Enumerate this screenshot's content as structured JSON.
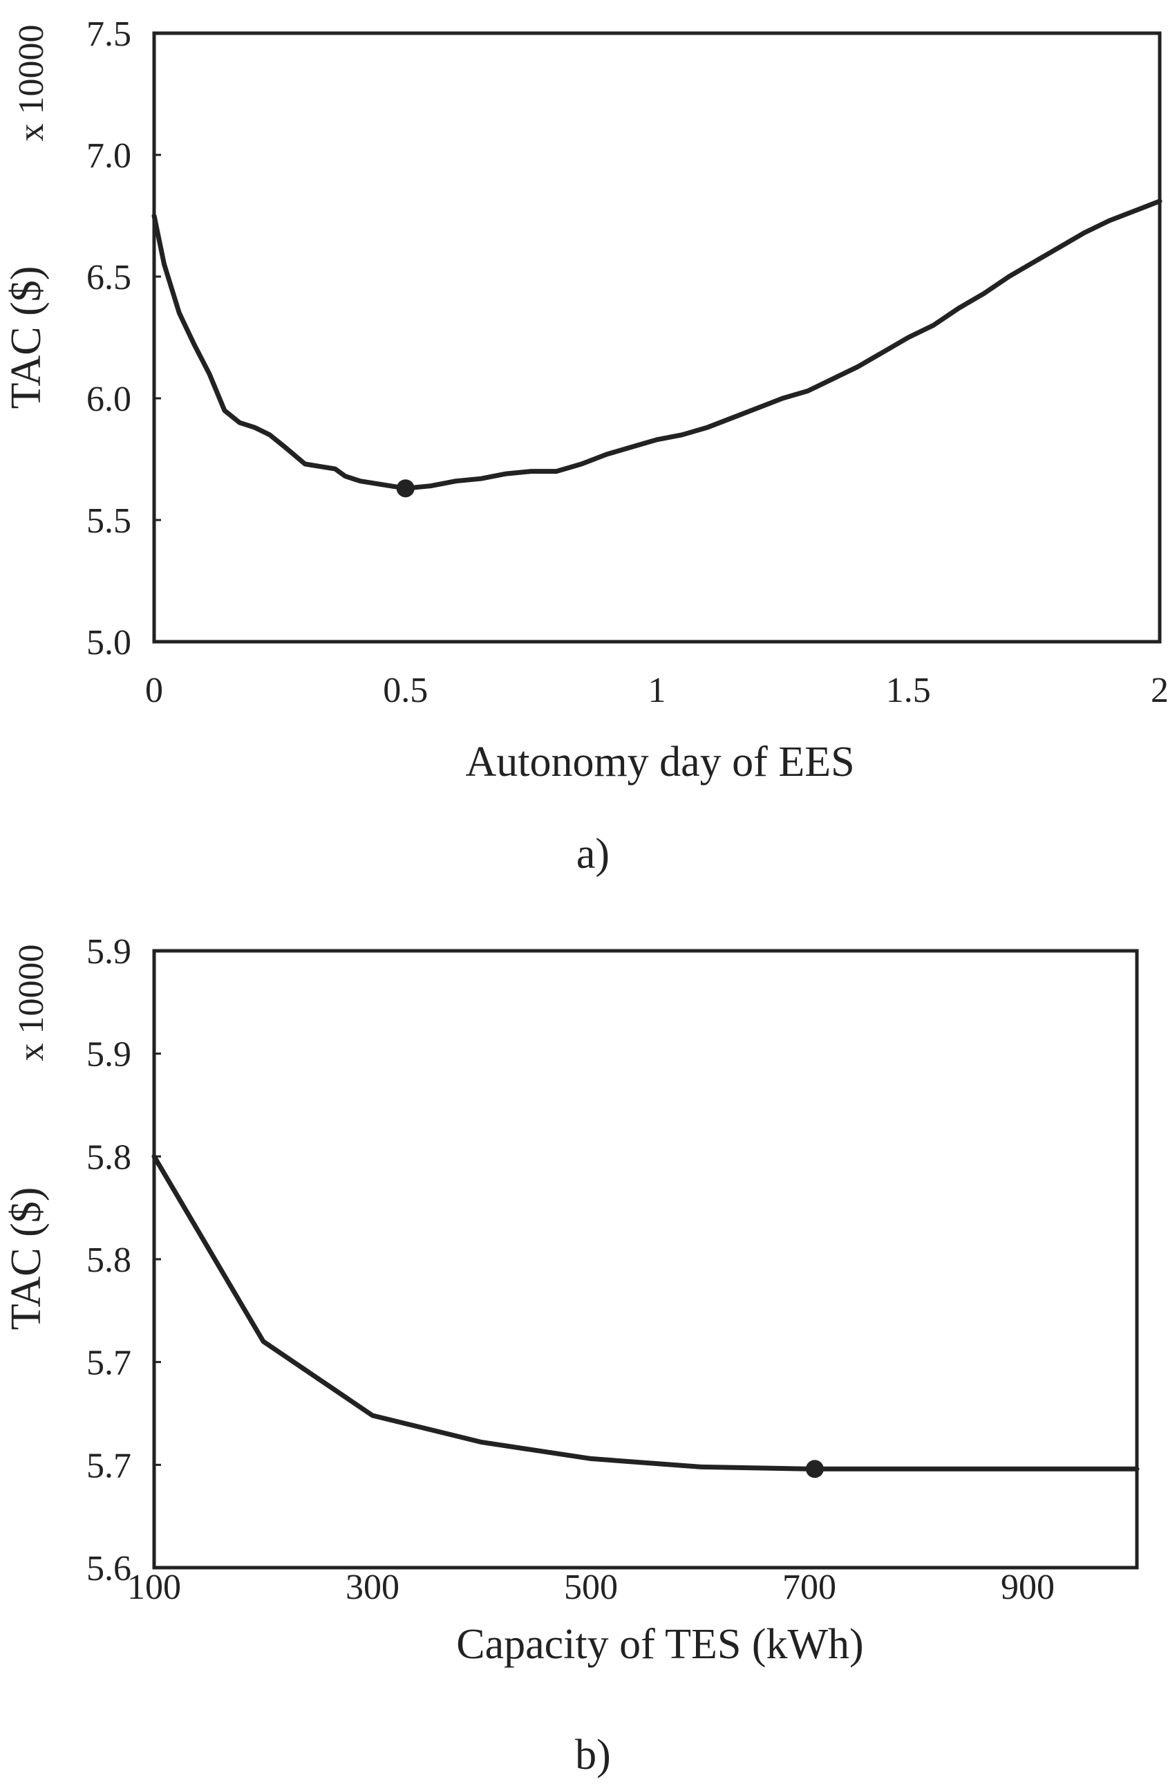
{
  "chart_data": [
    {
      "type": "line",
      "title": "",
      "caption": "a)",
      "xlabel": "Autonomy day of EES",
      "ylabel": "TAC ($)",
      "yscale_label": "x 10000",
      "xlim": [
        0,
        2
      ],
      "ylim": [
        5.0,
        7.5
      ],
      "xticks": [
        0,
        0.5,
        1,
        1.5,
        2
      ],
      "xtick_labels": [
        "0",
        "0.5",
        "1",
        "1.5",
        "2"
      ],
      "yticks": [
        5.0,
        5.5,
        6.0,
        6.5,
        7.0,
        7.5
      ],
      "ytick_labels": [
        "5.0",
        "5.5",
        "6.0",
        "6.5",
        "7.0",
        "7.5"
      ],
      "grid": false,
      "series": [
        {
          "x": [
            0,
            0.02,
            0.05,
            0.08,
            0.11,
            0.14,
            0.17,
            0.2,
            0.23,
            0.26,
            0.3,
            0.33,
            0.36,
            0.38,
            0.41,
            0.44,
            0.47,
            0.5,
            0.55,
            0.6,
            0.65,
            0.7,
            0.75,
            0.8,
            0.85,
            0.9,
            0.95,
            1.0,
            1.05,
            1.1,
            1.15,
            1.2,
            1.25,
            1.3,
            1.35,
            1.4,
            1.45,
            1.5,
            1.55,
            1.6,
            1.65,
            1.7,
            1.75,
            1.8,
            1.85,
            1.9,
            1.95,
            2.0
          ],
          "y": [
            6.75,
            6.55,
            6.35,
            6.22,
            6.1,
            5.95,
            5.9,
            5.88,
            5.85,
            5.8,
            5.73,
            5.72,
            5.71,
            5.68,
            5.66,
            5.65,
            5.64,
            5.63,
            5.64,
            5.66,
            5.67,
            5.69,
            5.7,
            5.7,
            5.73,
            5.77,
            5.8,
            5.83,
            5.85,
            5.88,
            5.92,
            5.96,
            6.0,
            6.03,
            6.08,
            6.13,
            6.19,
            6.25,
            6.3,
            6.37,
            6.43,
            6.5,
            6.56,
            6.62,
            6.68,
            6.73,
            6.77,
            6.81
          ]
        }
      ],
      "highlight": {
        "x": 0.5,
        "y": 5.63
      }
    },
    {
      "type": "line",
      "title": "",
      "caption": "b)",
      "xlabel": "Capacity of TES (kWh)",
      "ylabel": "TAC ($)",
      "yscale_label": "x 10000",
      "xlim": [
        100,
        1000
      ],
      "ylim": [
        5.6,
        5.9
      ],
      "xticks": [
        100,
        300,
        500,
        700,
        900
      ],
      "xtick_labels": [
        "100",
        "300",
        "500",
        "700",
        "900"
      ],
      "yticks": [
        5.6,
        5.65,
        5.7,
        5.75,
        5.8,
        5.85,
        5.9
      ],
      "ytick_labels": [
        "5.6",
        "5.7",
        "5.7",
        "5.8",
        "5.8",
        "5.9",
        "5.9"
      ],
      "grid": false,
      "series": [
        {
          "x": [
            100,
            200,
            300,
            400,
            500,
            600,
            700,
            800,
            900,
            1000
          ],
          "y": [
            5.8,
            5.71,
            5.674,
            5.661,
            5.653,
            5.649,
            5.648,
            5.648,
            5.648,
            5.648
          ]
        }
      ],
      "highlight": {
        "x": 705,
        "y": 5.648
      }
    }
  ]
}
